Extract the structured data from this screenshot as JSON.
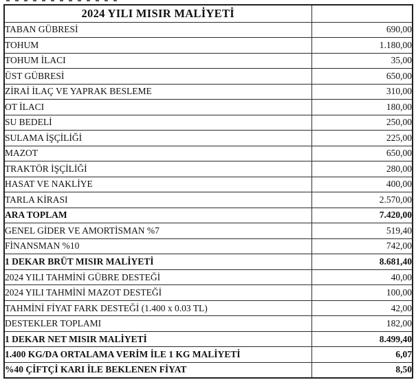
{
  "page": {
    "background": "#ffffff"
  },
  "colors": {
    "text": "#111111",
    "border": "#2b2b2b",
    "outer_border": "#1f1f1f"
  },
  "table": {
    "title": "2024 YILI MISIR MALİYETİ",
    "rows": [
      {
        "label": "TABAN GÜBRESİ",
        "value": "690,00",
        "bold": false
      },
      {
        "label": "TOHUM",
        "value": "1.180,00",
        "bold": false
      },
      {
        "label": "TOHUM İLACI",
        "value": "35,00",
        "bold": false
      },
      {
        "label": "ÜST GÜBRESİ",
        "value": "650,00",
        "bold": false
      },
      {
        "label": "ZİRAİ İLAÇ VE YAPRAK BESLEME",
        "value": "310,00",
        "bold": false
      },
      {
        "label": "OT İLACI",
        "value": "180,00",
        "bold": false
      },
      {
        "label": "SU BEDELİ",
        "value": "250,00",
        "bold": false
      },
      {
        "label": "SULAMA İŞÇİLİĞİ",
        "value": "225,00",
        "bold": false
      },
      {
        "label": "MAZOT",
        "value": "650,00",
        "bold": false
      },
      {
        "label": "TRAKTÖR İŞÇİLİĞİ",
        "value": "280,00",
        "bold": false
      },
      {
        "label": "HASAT VE NAKLİYE",
        "value": "400,00",
        "bold": false
      },
      {
        "label": "TARLA KİRASI",
        "value": "2.570,00",
        "bold": false
      },
      {
        "label": "ARA TOPLAM",
        "value": "7.420,00",
        "bold": true
      },
      {
        "label": "GENEL GİDER VE AMORTİSMAN  %7",
        "value": "519,40",
        "bold": false
      },
      {
        "label": "FİNANSMAN  %10",
        "value": "742,00",
        "bold": false
      },
      {
        "label": "1 DEKAR BRÜT MISIR MALİYETİ",
        "value": "8.681,40",
        "bold": true
      },
      {
        "label": "2024 YILI TAHMİNİ GÜBRE DESTEĞİ",
        "value": "40,00",
        "bold": false
      },
      {
        "label": "2024 YILI TAHMİNİ MAZOT DESTEĞİ",
        "value": "100,00",
        "bold": false
      },
      {
        "label": "TAHMİNİ FİYAT FARK DESTEĞİ  (1.400 x 0.03 TL)",
        "value": "42,00",
        "bold": false
      },
      {
        "label": "DESTEKLER TOPLAMI",
        "value": "182,00",
        "bold": false
      },
      {
        "label": "1 DEKAR NET MISIR MALİYETİ",
        "value": "8.499,40",
        "bold": true
      },
      {
        "label": "1.400 KG/DA ORTALAMA VERİM İLE 1 KG MALİYETİ",
        "value": "6,07",
        "bold": true
      },
      {
        "label": "%40 ÇİFTÇİ KARI İLE BEKLENEN FİYAT",
        "value": "8,50",
        "bold": true
      }
    ]
  }
}
